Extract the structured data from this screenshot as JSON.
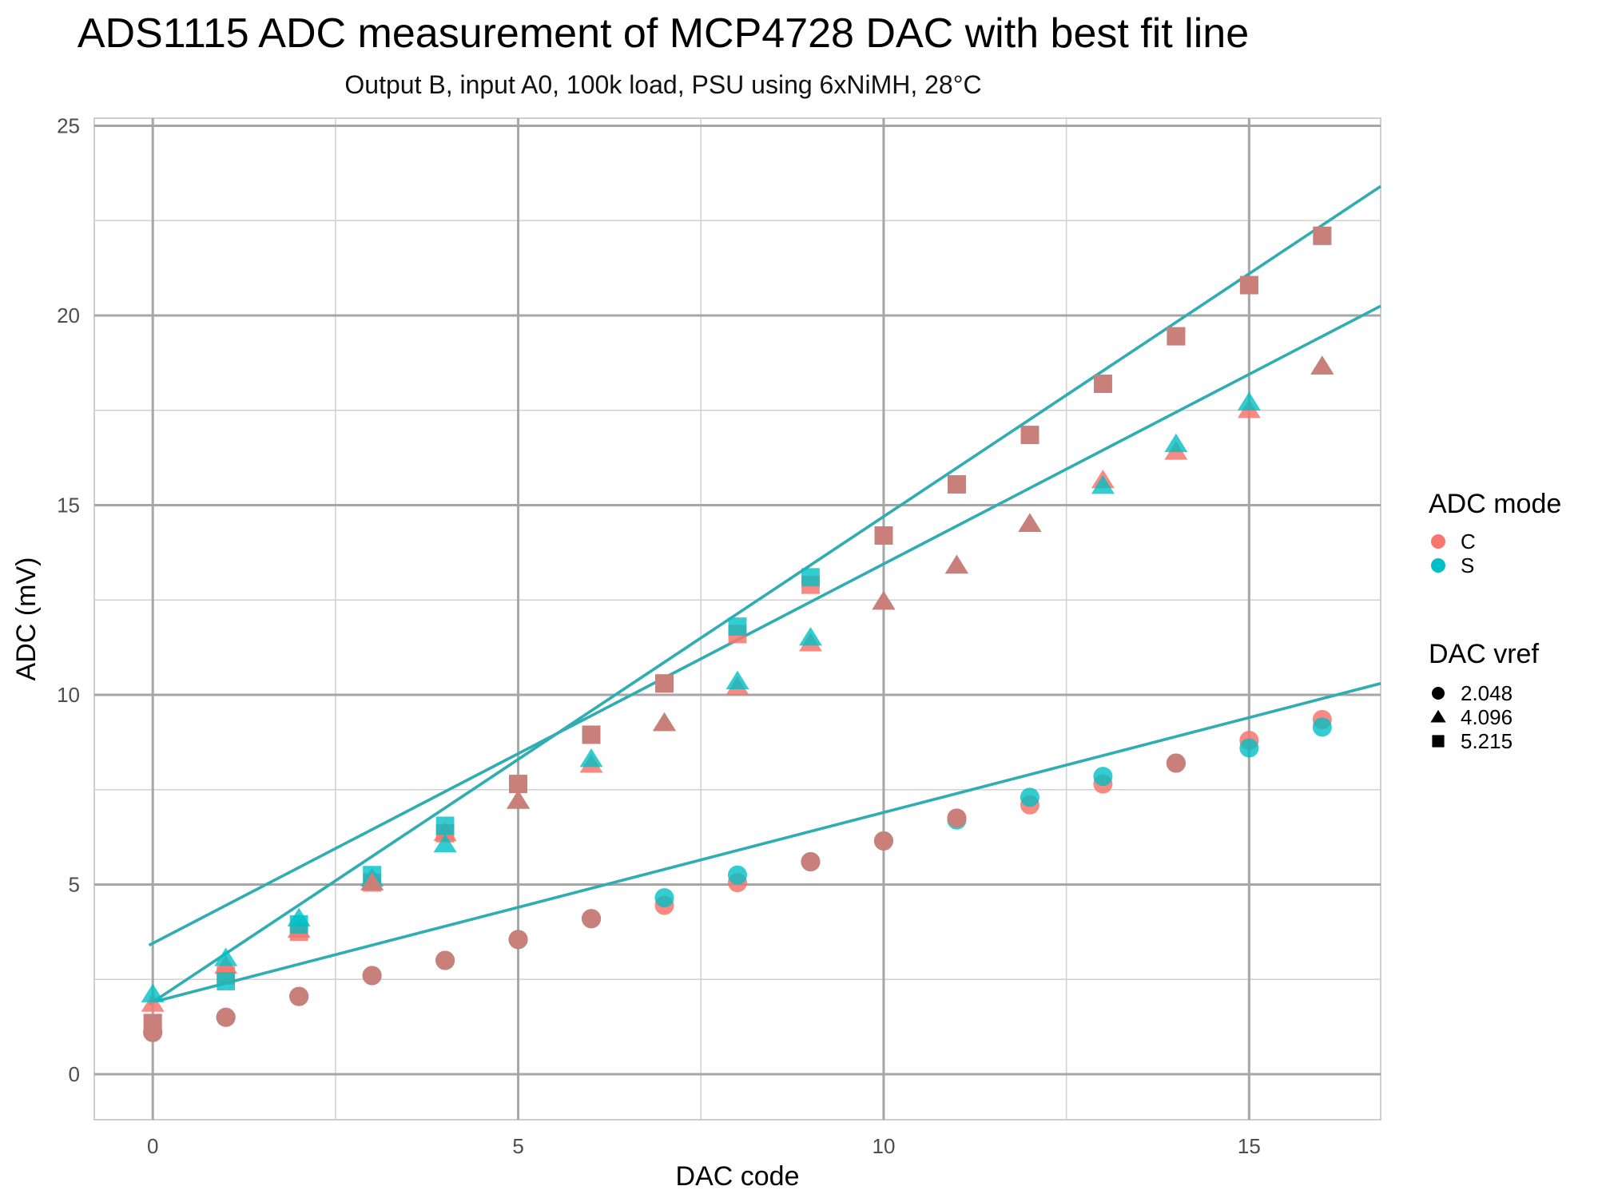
{
  "chart_data": {
    "type": "scatter",
    "title": "ADS1115 ADC measurement of MCP4728 DAC with best fit line",
    "subtitle": "Output B, input A0, 100k load, PSU using 6xNiMH, 28°C",
    "xlabel": "DAC code",
    "ylabel": "ADC (mV)",
    "xlim": [
      -0.8,
      16.8
    ],
    "ylim": [
      -1.2,
      25.2
    ],
    "x_ticks": [
      0,
      5,
      10,
      15
    ],
    "y_ticks": [
      0,
      5,
      10,
      15,
      20,
      25
    ],
    "grid": true,
    "legend_position": "right",
    "colors": {
      "C": "#F8766D",
      "S": "#00BFC4",
      "C_S_overlap": "#C9807A",
      "fit_line": "#2AAFB5",
      "fit_line_C": "#E3877E",
      "grid_major": "#A6A6A6",
      "grid_minor": "#D0D0D0"
    },
    "legend": {
      "color_title": "ADC mode",
      "color_entries": [
        {
          "label": "C",
          "color": "#F8766D"
        },
        {
          "label": "S",
          "color": "#00BFC4"
        }
      ],
      "shape_title": "DAC vref",
      "shape_entries": [
        {
          "label": "2.048",
          "shape": "circle"
        },
        {
          "label": "4.096",
          "shape": "triangle"
        },
        {
          "label": "5.215",
          "shape": "square"
        }
      ]
    },
    "series": [
      {
        "mode": "C",
        "vref": "2.048",
        "shape": "circle",
        "x": [
          0,
          1,
          2,
          3,
          4,
          5,
          6,
          7,
          8,
          9,
          10,
          11,
          12,
          13,
          14,
          15,
          16
        ],
        "y": [
          1.1,
          1.5,
          2.05,
          2.6,
          3.0,
          3.55,
          4.1,
          4.45,
          5.05,
          5.6,
          6.15,
          6.75,
          7.1,
          7.65,
          8.2,
          8.8,
          9.35
        ]
      },
      {
        "mode": "S",
        "vref": "2.048",
        "shape": "circle",
        "x": [
          0,
          1,
          2,
          3,
          4,
          5,
          6,
          7,
          8,
          9,
          10,
          11,
          12,
          13,
          14,
          15,
          16
        ],
        "y": [
          1.1,
          1.5,
          2.05,
          2.6,
          3.0,
          3.55,
          4.1,
          4.65,
          5.25,
          5.6,
          6.15,
          6.7,
          7.3,
          7.85,
          8.2,
          8.6,
          9.15
        ]
      },
      {
        "mode": "C",
        "vref": "4.096",
        "shape": "triangle",
        "x": [
          0,
          1,
          2,
          3,
          4,
          5,
          6,
          7,
          8,
          9,
          10,
          11,
          12,
          13,
          14,
          15,
          16
        ],
        "y": [
          1.85,
          2.85,
          3.8,
          5.05,
          6.35,
          7.2,
          8.15,
          9.25,
          10.2,
          11.35,
          12.45,
          13.4,
          14.5,
          15.65,
          16.4,
          17.5,
          18.65
        ]
      },
      {
        "mode": "S",
        "vref": "4.096",
        "shape": "triangle",
        "x": [
          0,
          1,
          2,
          3,
          4,
          5,
          6,
          7,
          8,
          9,
          10,
          11,
          12,
          13,
          14,
          15,
          16
        ],
        "y": [
          2.1,
          3.05,
          4.1,
          5.15,
          6.05,
          7.2,
          8.3,
          9.25,
          10.35,
          11.5,
          12.45,
          13.4,
          14.5,
          15.5,
          16.6,
          17.7,
          18.65
        ]
      },
      {
        "mode": "C",
        "vref": "5.215",
        "shape": "square",
        "x": [
          0,
          1,
          2,
          3,
          4,
          5,
          6,
          7,
          8,
          9,
          10,
          11,
          12,
          13,
          14,
          15,
          16
        ],
        "y": [
          1.35,
          2.6,
          3.75,
          5.05,
          6.35,
          7.65,
          8.95,
          10.3,
          11.6,
          12.9,
          14.2,
          15.55,
          16.85,
          18.2,
          19.45,
          20.8,
          22.1
        ]
      },
      {
        "mode": "S",
        "vref": "5.215",
        "shape": "square",
        "x": [
          0,
          1,
          2,
          3,
          4,
          5,
          6,
          7,
          8,
          9,
          10,
          11,
          12,
          13,
          14,
          15,
          16
        ],
        "y": [
          1.35,
          2.45,
          3.95,
          5.25,
          6.55,
          7.65,
          8.95,
          10.3,
          11.8,
          13.1,
          14.2,
          15.55,
          16.85,
          18.2,
          19.45,
          20.8,
          22.1
        ]
      }
    ],
    "fit_lines": [
      {
        "vref": "2.048",
        "intercept": 1.9,
        "slope": 0.5
      },
      {
        "vref": "4.096",
        "intercept": 3.45,
        "slope": 1.0
      },
      {
        "vref": "5.215",
        "intercept": 1.9,
        "slope": 1.28
      }
    ]
  }
}
